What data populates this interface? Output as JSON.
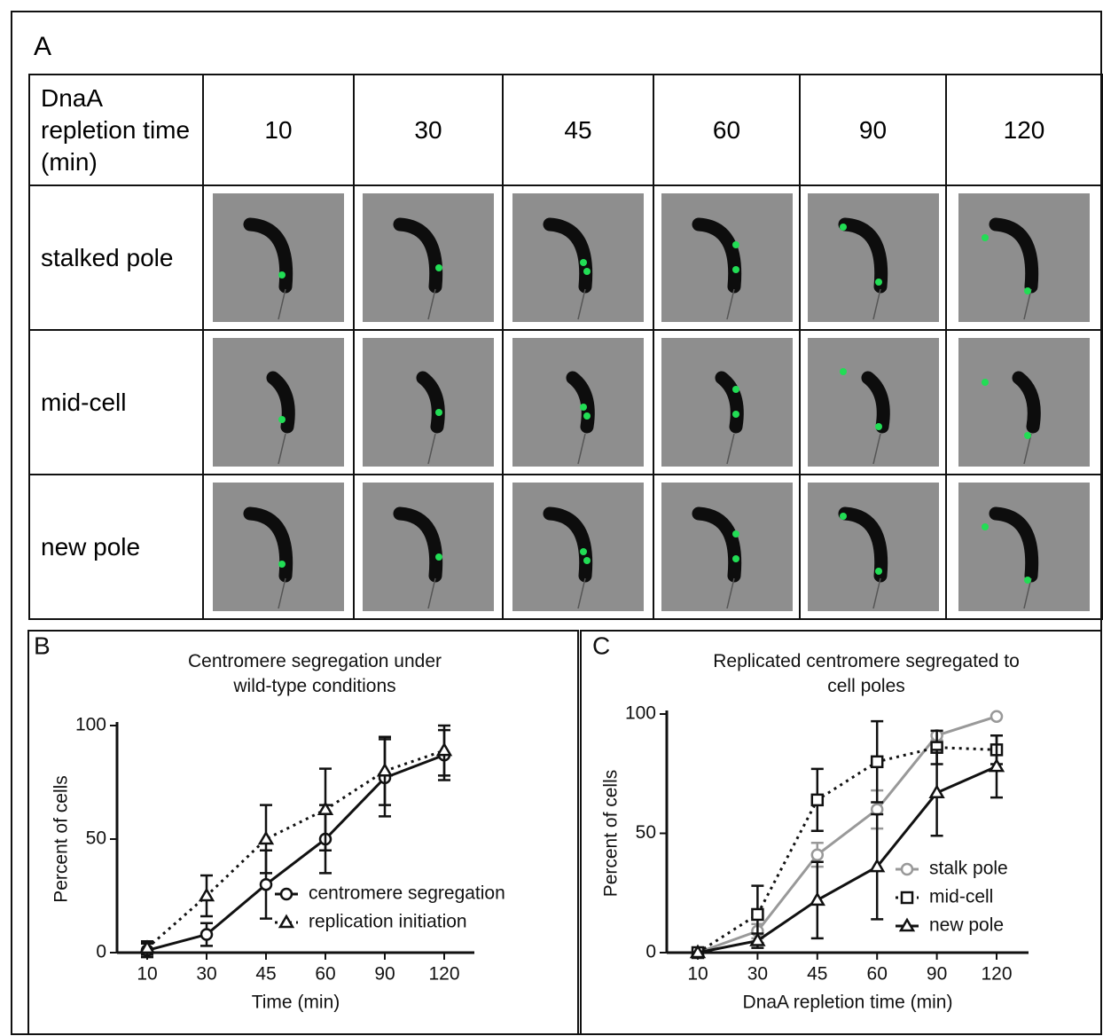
{
  "panel_a": {
    "label": "A",
    "column_header": "DnaA repletion time (min)",
    "times": [
      10,
      30,
      45,
      60,
      90,
      120
    ],
    "rows": [
      "stalked pole",
      "mid-cell",
      "new pole"
    ]
  },
  "chart_data": [
    {
      "type": "line",
      "panel_label": "B",
      "title": "Centromere segregation under wild-type conditions",
      "x_label": "Time (min)",
      "y_label": "Percent of cells",
      "categories": [
        10,
        30,
        45,
        60,
        90,
        120
      ],
      "ylim": [
        0,
        100
      ],
      "yticks": [
        0,
        50,
        100
      ],
      "legend": "lower right",
      "series": [
        {
          "name": "centromere segregation",
          "color": "#111111",
          "line_style": "solid",
          "marker": "circle",
          "values": [
            1,
            8,
            30,
            50,
            77,
            87
          ],
          "errors": [
            3,
            5,
            15,
            15,
            17,
            11
          ]
        },
        {
          "name": "replication initiation",
          "color": "#111111",
          "line_style": "dotted",
          "marker": "triangle",
          "values": [
            2,
            25,
            50,
            63,
            80,
            89
          ],
          "errors": [
            3,
            9,
            15,
            18,
            15,
            11
          ]
        }
      ]
    },
    {
      "type": "line",
      "panel_label": "C",
      "title": "Replicated centromere segregated to cell poles",
      "x_label": "DnaA repletion time (min)",
      "y_label": "Percent of cells",
      "categories": [
        10,
        30,
        45,
        60,
        90,
        120
      ],
      "ylim": [
        0,
        100
      ],
      "yticks": [
        0,
        50,
        100
      ],
      "legend": "lower right",
      "series": [
        {
          "name": "stalk pole",
          "color": "#999999",
          "line_style": "solid",
          "marker": "circle",
          "values": [
            0,
            9,
            41,
            60,
            91,
            99
          ],
          "errors": [
            0,
            3,
            5,
            8,
            2,
            0
          ]
        },
        {
          "name": "mid-cell",
          "color": "#111111",
          "line_style": "dotted",
          "marker": "square",
          "values": [
            0,
            16,
            64,
            80,
            86,
            85
          ],
          "errors": [
            0,
            12,
            13,
            17,
            7,
            6
          ]
        },
        {
          "name": "new pole",
          "color": "#111111",
          "line_style": "solid",
          "marker": "triangle",
          "values": [
            0,
            5,
            22,
            36,
            67,
            78
          ],
          "errors": [
            0,
            3,
            16,
            22,
            18,
            13
          ]
        }
      ]
    }
  ]
}
